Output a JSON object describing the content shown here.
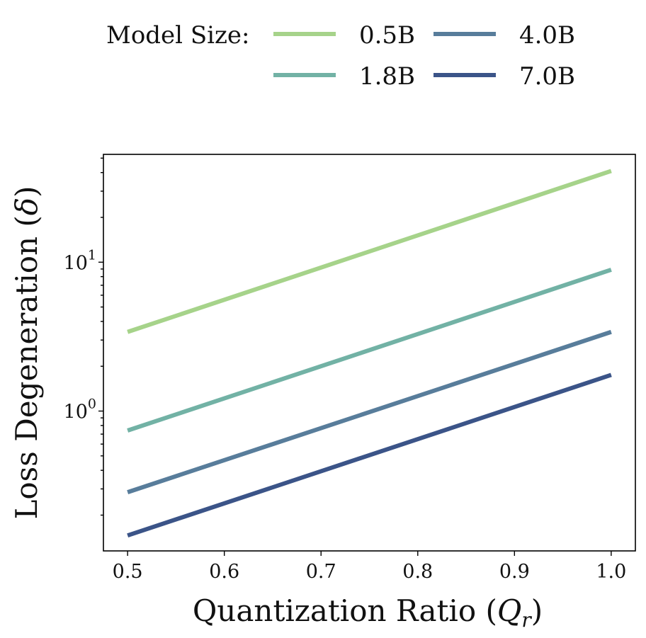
{
  "chart_data": {
    "type": "line",
    "title": "",
    "xlabel": "Quantization Ratio (",
    "xlabel_symbol": "Q",
    "xlabel_sub": "r",
    "xlabel_close": ")",
    "ylabel": "Loss Degeneration (",
    "ylabel_symbol": "δ",
    "ylabel_close": ")",
    "yscale": "log",
    "xlim": [
      0.475,
      1.025
    ],
    "ylim": [
      0.115,
      53
    ],
    "x_ticks": [
      0.5,
      0.6,
      0.7,
      0.8,
      0.9,
      1.0
    ],
    "x_tick_labels": [
      "0.5",
      "0.6",
      "0.7",
      "0.8",
      "0.9",
      "1.0"
    ],
    "y_major_ticks": [
      1,
      10
    ],
    "y_tick_labels": [
      {
        "base": "10",
        "exp": "0"
      },
      {
        "base": "10",
        "exp": "1"
      }
    ],
    "legend": {
      "title": "Model Size:",
      "placement": "top-center"
    },
    "series": [
      {
        "name": "0.5B",
        "color": "#a6d38a",
        "x": [
          0.5,
          1.0
        ],
        "values": [
          3.4,
          41
        ]
      },
      {
        "name": "1.8B",
        "color": "#72b2a5",
        "x": [
          0.5,
          1.0
        ],
        "values": [
          0.74,
          8.9
        ]
      },
      {
        "name": "4.0B",
        "color": "#587d9b",
        "x": [
          0.5,
          1.0
        ],
        "values": [
          0.285,
          3.4
        ]
      },
      {
        "name": "7.0B",
        "color": "#3b5488",
        "x": [
          0.5,
          1.0
        ],
        "values": [
          0.146,
          1.75
        ]
      }
    ]
  }
}
